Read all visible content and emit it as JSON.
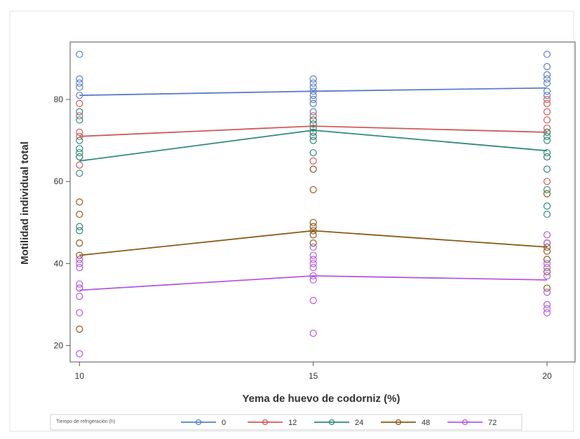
{
  "chart_data": {
    "type": "line",
    "title": "",
    "xlabel": "Yema de huevo de codorniz (%)",
    "ylabel": "Motilidad individual total",
    "x": [
      10,
      15,
      20
    ],
    "xticks": [
      "10",
      "15",
      "20"
    ],
    "yticks": [
      "20",
      "40",
      "60",
      "80"
    ],
    "xlim": [
      9.8,
      20.6
    ],
    "ylim": [
      16,
      94
    ],
    "legend": {
      "title": "Tiempo de refrigeración (h)",
      "placement": "bottom",
      "entries": [
        "0",
        "12",
        "24",
        "48",
        "72"
      ]
    },
    "series": [
      {
        "name": "0",
        "color": "#5a7ec6",
        "values": [
          81,
          82,
          82.8
        ],
        "points": [
          [
            10,
            91
          ],
          [
            10,
            85
          ],
          [
            10,
            84
          ],
          [
            10,
            83
          ],
          [
            10,
            81
          ],
          [
            15,
            85
          ],
          [
            15,
            84
          ],
          [
            15,
            83
          ],
          [
            15,
            82
          ],
          [
            15,
            81
          ],
          [
            15,
            80
          ],
          [
            15,
            79
          ],
          [
            15,
            77
          ],
          [
            20,
            91
          ],
          [
            20,
            88
          ],
          [
            20,
            86
          ],
          [
            20,
            85
          ],
          [
            20,
            84
          ],
          [
            20,
            82
          ],
          [
            20,
            81
          ]
        ]
      },
      {
        "name": "12",
        "color": "#d05a5a",
        "values": [
          71,
          73.5,
          72
        ],
        "points": [
          [
            10,
            79
          ],
          [
            10,
            76
          ],
          [
            10,
            72
          ],
          [
            10,
            71
          ],
          [
            10,
            66
          ],
          [
            10,
            64
          ],
          [
            15,
            76
          ],
          [
            15,
            75
          ],
          [
            15,
            74
          ],
          [
            15,
            73
          ],
          [
            15,
            72
          ],
          [
            15,
            71
          ],
          [
            15,
            65
          ],
          [
            20,
            80
          ],
          [
            20,
            79
          ],
          [
            20,
            77
          ],
          [
            20,
            75
          ],
          [
            20,
            73
          ],
          [
            20,
            72
          ],
          [
            20,
            66
          ],
          [
            20,
            60
          ]
        ]
      },
      {
        "name": "24",
        "color": "#2e8b7a",
        "values": [
          65,
          72.5,
          67.5
        ],
        "points": [
          [
            10,
            77
          ],
          [
            10,
            75
          ],
          [
            10,
            70
          ],
          [
            10,
            68
          ],
          [
            10,
            67
          ],
          [
            10,
            66
          ],
          [
            10,
            62
          ],
          [
            10,
            49
          ],
          [
            10,
            48
          ],
          [
            15,
            75
          ],
          [
            15,
            74
          ],
          [
            15,
            73
          ],
          [
            15,
            72
          ],
          [
            15,
            71
          ],
          [
            15,
            70
          ],
          [
            15,
            67
          ],
          [
            20,
            72
          ],
          [
            20,
            71
          ],
          [
            20,
            70
          ],
          [
            20,
            67
          ],
          [
            20,
            66
          ],
          [
            20,
            63
          ],
          [
            20,
            58
          ],
          [
            20,
            54
          ],
          [
            20,
            52
          ]
        ]
      },
      {
        "name": "48",
        "color": "#8b5a1a",
        "values": [
          42,
          48,
          44
        ],
        "points": [
          [
            10,
            55
          ],
          [
            10,
            52
          ],
          [
            10,
            45
          ],
          [
            10,
            42
          ],
          [
            10,
            34
          ],
          [
            10,
            24
          ],
          [
            15,
            63
          ],
          [
            15,
            58
          ],
          [
            15,
            50
          ],
          [
            15,
            49
          ],
          [
            15,
            48
          ],
          [
            15,
            47
          ],
          [
            15,
            45
          ],
          [
            20,
            57
          ],
          [
            20,
            45
          ],
          [
            20,
            44
          ],
          [
            20,
            43
          ],
          [
            20,
            41
          ],
          [
            20,
            38
          ],
          [
            20,
            34
          ]
        ]
      },
      {
        "name": "72",
        "color": "#b45ae0",
        "values": [
          33.5,
          37,
          36
        ],
        "points": [
          [
            10,
            41
          ],
          [
            10,
            40
          ],
          [
            10,
            39
          ],
          [
            10,
            35
          ],
          [
            10,
            34
          ],
          [
            10,
            32
          ],
          [
            10,
            28
          ],
          [
            10,
            18
          ],
          [
            15,
            44
          ],
          [
            15,
            42
          ],
          [
            15,
            41
          ],
          [
            15,
            40
          ],
          [
            15,
            39
          ],
          [
            15,
            37
          ],
          [
            15,
            36
          ],
          [
            15,
            31
          ],
          [
            15,
            23
          ],
          [
            20,
            47
          ],
          [
            20,
            45
          ],
          [
            20,
            40
          ],
          [
            20,
            39
          ],
          [
            20,
            37
          ],
          [
            20,
            33
          ],
          [
            20,
            30
          ],
          [
            20,
            29
          ],
          [
            20,
            28
          ]
        ]
      }
    ]
  }
}
